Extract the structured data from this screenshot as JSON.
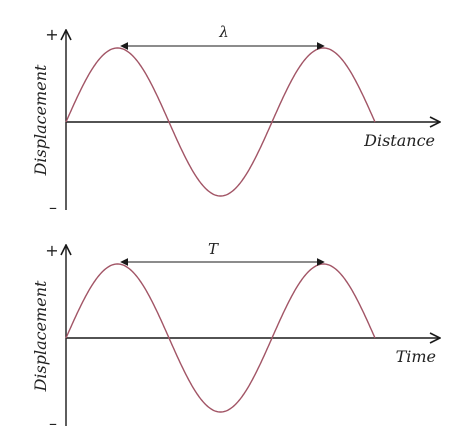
{
  "colors": {
    "wave": "#a25566",
    "axis": "#1a1a1a",
    "text": "#222222"
  },
  "panels": [
    {
      "id": "top",
      "y_axis_label": "Displacement",
      "x_axis_label": "Distance",
      "plus_sign": "+",
      "minus_sign": "–",
      "interval_label": "λ"
    },
    {
      "id": "bottom",
      "y_axis_label": "Displacement",
      "x_axis_label": "Time",
      "plus_sign": "+",
      "minus_sign": "–",
      "interval_label": "T"
    }
  ]
}
